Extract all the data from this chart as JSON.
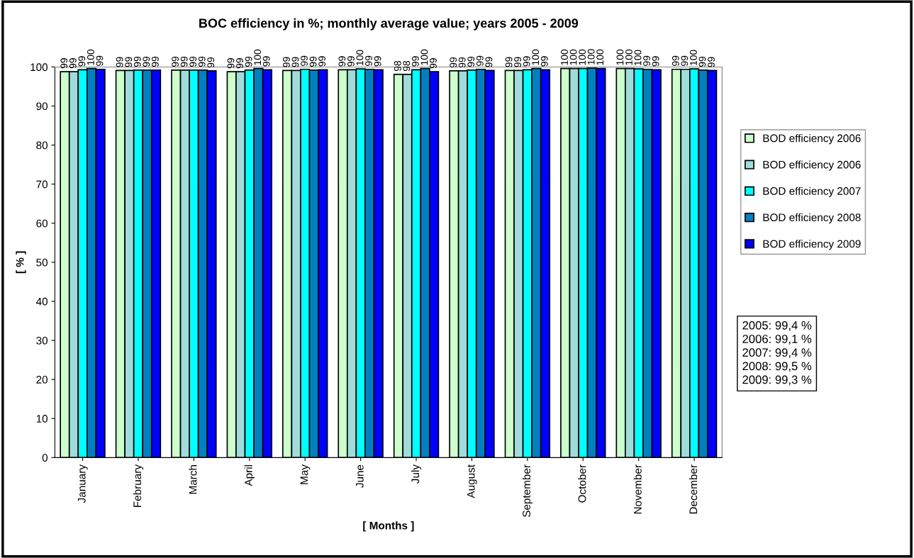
{
  "chart_data": {
    "type": "bar",
    "title": "BOC efficiency in %; monthly average value; years 2005 - 2009",
    "xlabel": "[ Months ]",
    "ylabel": "[ % ]",
    "categories": [
      "January",
      "February",
      "March",
      "April",
      "May",
      "June",
      "July",
      "August",
      "September",
      "October",
      "November",
      "December"
    ],
    "series": [
      {
        "name": "BOD efficiency 2006",
        "color": "#ccffcc",
        "values": [
          98.8,
          99.1,
          99.2,
          98.8,
          99.1,
          99.3,
          98.1,
          99.0,
          99.1,
          99.6,
          99.6,
          99.4
        ],
        "value_labels": [
          "99",
          "99",
          "99",
          "99",
          "99",
          "99",
          "98",
          "99",
          "99",
          "100",
          "100",
          "99"
        ]
      },
      {
        "name": "BOD efficiency 2006",
        "color": "#a0dcdc",
        "values": [
          98.8,
          99.1,
          99.2,
          98.8,
          99.1,
          99.3,
          98.1,
          99.0,
          99.1,
          99.6,
          99.6,
          99.4
        ],
        "value_labels": [
          "99",
          "99",
          "99",
          "99",
          "99",
          "99",
          "98",
          "99",
          "99",
          "100",
          "100",
          "99"
        ]
      },
      {
        "name": "BOD efficiency 2007",
        "color": "#00ffff",
        "values": [
          99.3,
          99.2,
          99.2,
          99.2,
          99.4,
          99.5,
          99.3,
          99.2,
          99.3,
          99.6,
          99.5,
          99.5
        ],
        "value_labels": [
          "99",
          "99",
          "99",
          "99",
          "99",
          "100",
          "99",
          "99",
          "99",
          "100",
          "100",
          "100"
        ]
      },
      {
        "name": "BOD efficiency 2008",
        "color": "#0080c0",
        "values": [
          99.6,
          99.2,
          99.2,
          99.6,
          99.2,
          99.4,
          99.6,
          99.4,
          99.6,
          99.7,
          99.4,
          99.2
        ],
        "value_labels": [
          "100",
          "99",
          "99",
          "100",
          "99",
          "99",
          "100",
          "99",
          "100",
          "100",
          "99",
          "99"
        ]
      },
      {
        "name": "BOD efficiency 2009",
        "color": "#0000ff",
        "values": [
          99.4,
          99.2,
          99.0,
          99.3,
          99.3,
          99.3,
          98.8,
          99.1,
          99.3,
          99.6,
          99.3,
          99.1
        ],
        "value_labels": [
          "99",
          "99",
          "99",
          "99",
          "99",
          "99",
          "99",
          "99",
          "99",
          "100",
          "99",
          "99"
        ]
      }
    ],
    "ylim": [
      0,
      100
    ],
    "yticks": [
      0,
      10,
      20,
      30,
      40,
      50,
      60,
      70,
      80,
      90,
      100
    ],
    "grid": false,
    "legend": "right",
    "annotations": [
      "2005: 99,4 %\n2006: 99,1 %\n2007: 99,4 %\n2008: 99,5 %\n2009: 99,3 %"
    ]
  }
}
